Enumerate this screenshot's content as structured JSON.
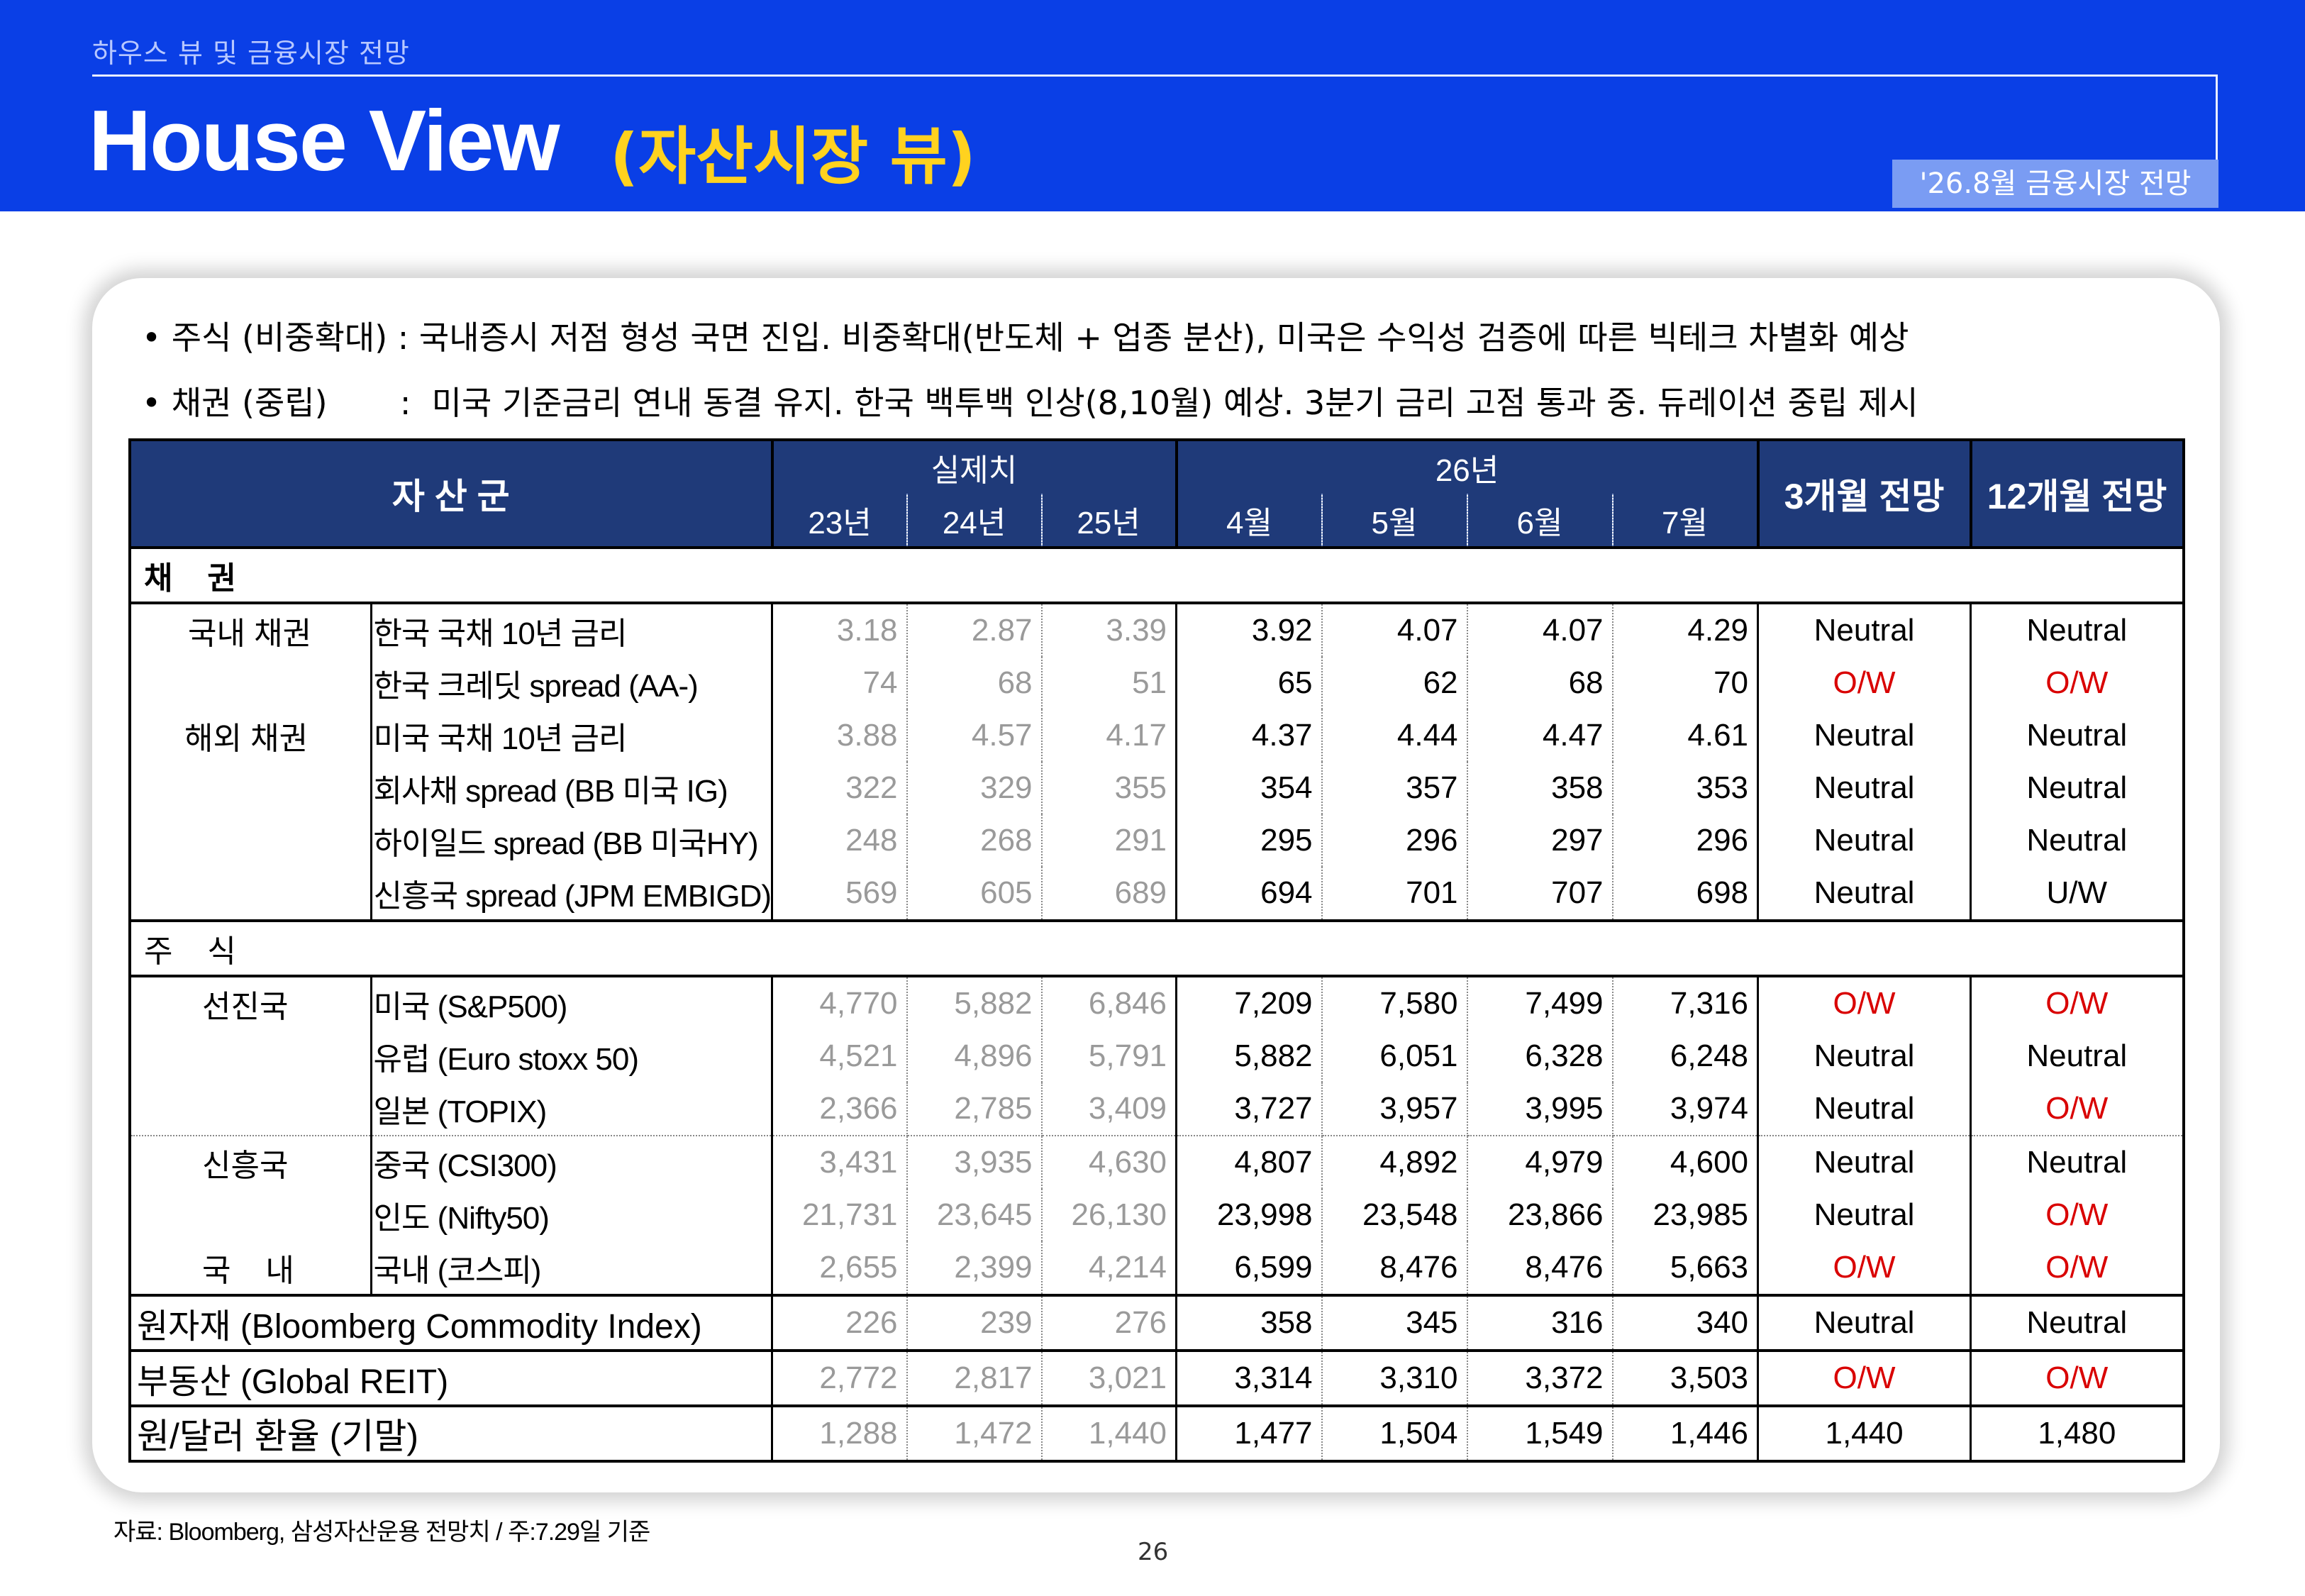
{
  "header": {
    "subtitle": "하우스 뷰 및 금융시장 전망",
    "title": "House View",
    "title_kr": "(자산시장 뷰)",
    "date_badge": "'26.8월 금융시장 전망"
  },
  "bullets": [
    "• 주식 (비중확대) : 국내증시 저점 형성 국면 진입. 비중확대(반도체 + 업종 분산), 미국은 수익성 검증에 따른 빅테크 차별화 예상",
    "• 채권 (중립)       :  미국 기준금리 연내 동결 유지. 한국 백투백 인상(8,10월) 예상. 3분기 금리 고점 통과 중. 듀레이션 중립 제시"
  ],
  "table": {
    "asset_class": "자 산 군",
    "actual": "실제치",
    "year26": "26년",
    "outlook3": "3개월 전망",
    "outlook12": "12개월 전망",
    "years": [
      "23년",
      "24년",
      "25년"
    ],
    "months": [
      "4월",
      "5월",
      "6월",
      "7월"
    ],
    "sections": {
      "bonds": "채    권",
      "equity": "주    식"
    },
    "groups": {
      "domestic_bond": "국내 채권",
      "foreign_bond": "해외 채권",
      "developed": "선진국",
      "emerging": "신흥국",
      "domestic_eq": "국    내"
    },
    "rows": [
      {
        "label": "한국 국채 10년 금리",
        "y23": "3.18",
        "y24": "2.87",
        "y25": "3.39",
        "m4": "3.92",
        "m5": "4.07",
        "m6": "4.07",
        "m7": "4.29",
        "o3": "Neutral",
        "o12": "Neutral"
      },
      {
        "label": "한국 크레딧 spread (AA-)",
        "y23": "74",
        "y24": "68",
        "y25": "51",
        "m4": "65",
        "m5": "62",
        "m6": "68",
        "m7": "70",
        "o3": "O/W",
        "o12": "O/W"
      },
      {
        "label": "미국 국채 10년 금리",
        "y23": "3.88",
        "y24": "4.57",
        "y25": "4.17",
        "m4": "4.37",
        "m5": "4.44",
        "m6": "4.47",
        "m7": "4.61",
        "o3": "Neutral",
        "o12": "Neutral"
      },
      {
        "label": "회사채 spread (BB 미국 IG)",
        "y23": "322",
        "y24": "329",
        "y25": "355",
        "m4": "354",
        "m5": "357",
        "m6": "358",
        "m7": "353",
        "o3": "Neutral",
        "o12": "Neutral"
      },
      {
        "label": "하이일드 spread (BB 미국HY)",
        "y23": "248",
        "y24": "268",
        "y25": "291",
        "m4": "295",
        "m5": "296",
        "m6": "297",
        "m7": "296",
        "o3": "Neutral",
        "o12": "Neutral"
      },
      {
        "label": "신흥국 spread (JPM EMBIGD)",
        "y23": "569",
        "y24": "605",
        "y25": "689",
        "m4": "694",
        "m5": "701",
        "m6": "707",
        "m7": "698",
        "o3": "Neutral",
        "o12": "U/W"
      },
      {
        "label": "미국 (S&P500)",
        "y23": "4,770",
        "y24": "5,882",
        "y25": "6,846",
        "m4": "7,209",
        "m5": "7,580",
        "m6": "7,499",
        "m7": "7,316",
        "o3": "O/W",
        "o12": "O/W"
      },
      {
        "label": "유럽 (Euro stoxx 50)",
        "y23": "4,521",
        "y24": "4,896",
        "y25": "5,791",
        "m4": "5,882",
        "m5": "6,051",
        "m6": "6,328",
        "m7": "6,248",
        "o3": "Neutral",
        "o12": "Neutral"
      },
      {
        "label": "일본 (TOPIX)",
        "y23": "2,366",
        "y24": "2,785",
        "y25": "3,409",
        "m4": "3,727",
        "m5": "3,957",
        "m6": "3,995",
        "m7": "3,974",
        "o3": "Neutral",
        "o12": "O/W"
      },
      {
        "label": "중국 (CSI300)",
        "y23": "3,431",
        "y24": "3,935",
        "y25": "4,630",
        "m4": "4,807",
        "m5": "4,892",
        "m6": "4,979",
        "m7": "4,600",
        "o3": "Neutral",
        "o12": "Neutral"
      },
      {
        "label": "인도 (Nifty50)",
        "y23": "21,731",
        "y24": "23,645",
        "y25": "26,130",
        "m4": "23,998",
        "m5": "23,548",
        "m6": "23,866",
        "m7": "23,985",
        "o3": "Neutral",
        "o12": "O/W"
      },
      {
        "label": "국내 (코스피)",
        "y23": "2,655",
        "y24": "2,399",
        "y25": "4,214",
        "m4": "6,599",
        "m5": "8,476",
        "m6": "8,476",
        "m7": "5,663",
        "o3": "O/W",
        "o12": "O/W"
      },
      {
        "label": "원자재 (Bloomberg Commodity Index)",
        "y23": "226",
        "y24": "239",
        "y25": "276",
        "m4": "358",
        "m5": "345",
        "m6": "316",
        "m7": "340",
        "o3": "Neutral",
        "o12": "Neutral"
      },
      {
        "label": "부동산 (Global REIT)",
        "y23": "2,772",
        "y24": "2,817",
        "y25": "3,021",
        "m4": "3,314",
        "m5": "3,310",
        "m6": "3,372",
        "m7": "3,503",
        "o3": "O/W",
        "o12": "O/W"
      },
      {
        "label": "원/달러 환율 (기말)",
        "y23": "1,288",
        "y24": "1,472",
        "y25": "1,440",
        "m4": "1,477",
        "m5": "1,504",
        "m6": "1,549",
        "m7": "1,446",
        "o3": "1,440",
        "o12": "1,480"
      }
    ]
  },
  "footer": {
    "source": "자료: Bloomberg, 삼성자산운용 전망치 / 주:7.29일 기준",
    "page": "26"
  },
  "colors": {
    "header_bg": "#0a3fe6",
    "title_accent": "#ffd21f",
    "table_header": "#1f3a79",
    "overweight": "#d90000",
    "actual_text": "#9a9a9a"
  }
}
